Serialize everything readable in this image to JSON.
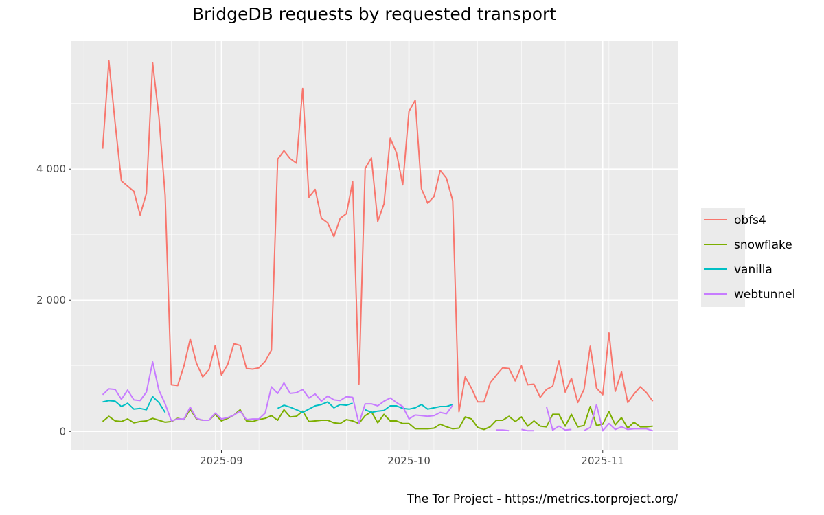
{
  "chart_data": {
    "type": "line",
    "title": "BridgeDB requests by requested transport",
    "caption": "The Tor Project - https://metrics.torproject.org/",
    "xlabel": "",
    "ylabel": "",
    "x_start": "2025-08-13",
    "x_step_days": 1,
    "xlim": [
      "2025-08-08",
      "2025-11-13"
    ],
    "ylim": [
      -280,
      5950
    ],
    "x_ticks": [
      {
        "date": "2025-09-01",
        "label": "2025-09"
      },
      {
        "date": "2025-10-01",
        "label": "2025-10"
      },
      {
        "date": "2025-11-01",
        "label": "2025-11"
      }
    ],
    "y_ticks": [
      {
        "value": 0,
        "label": "0"
      },
      {
        "value": 2000,
        "label": "2 000"
      },
      {
        "value": 4000,
        "label": "4 000"
      }
    ],
    "y_minor": [
      1000,
      3000,
      5000
    ],
    "grid": true,
    "legend_position": "right",
    "series": [
      {
        "name": "obfs4",
        "color": "#F8766D",
        "values": [
          4310,
          5650,
          4700,
          3820,
          3740,
          3660,
          3300,
          3630,
          5620,
          4800,
          3600,
          710,
          700,
          1000,
          1410,
          1040,
          830,
          940,
          1310,
          860,
          1020,
          1340,
          1310,
          960,
          950,
          970,
          1070,
          1240,
          4150,
          4280,
          4160,
          4090,
          5230,
          3570,
          3690,
          3250,
          3180,
          2970,
          3250,
          3320,
          3810,
          720,
          4010,
          4170,
          3200,
          3470,
          4470,
          4250,
          3760,
          4880,
          5050,
          3700,
          3480,
          3580,
          3980,
          3860,
          3520,
          300,
          830,
          660,
          450,
          450,
          740,
          860,
          970,
          960,
          770,
          1000,
          710,
          720,
          520,
          640,
          690,
          1080,
          600,
          810,
          440,
          640,
          1300,
          660,
          560,
          1500,
          610,
          910,
          440,
          570,
          680,
          590,
          460
        ]
      },
      {
        "name": "snowflake",
        "color": "#7CAE00",
        "values": [
          150,
          230,
          160,
          150,
          190,
          130,
          150,
          160,
          200,
          170,
          140,
          150,
          200,
          180,
          340,
          190,
          170,
          170,
          260,
          160,
          200,
          250,
          330,
          160,
          150,
          180,
          200,
          240,
          170,
          330,
          220,
          230,
          310,
          150,
          160,
          170,
          170,
          130,
          120,
          180,
          160,
          120,
          240,
          300,
          130,
          260,
          160,
          160,
          120,
          120,
          40,
          40,
          40,
          50,
          110,
          70,
          40,
          50,
          220,
          190,
          60,
          30,
          70,
          170,
          170,
          230,
          150,
          220,
          80,
          160,
          80,
          70,
          260,
          260,
          80,
          260,
          70,
          90,
          380,
          90,
          110,
          300,
          100,
          210,
          50,
          140,
          70,
          70,
          80
        ]
      },
      {
        "name": "vanilla",
        "color": "#00BFC4",
        "values": [
          450,
          470,
          460,
          380,
          430,
          340,
          350,
          330,
          530,
          440,
          290,
          null,
          null,
          null,
          null,
          null,
          null,
          null,
          null,
          null,
          null,
          null,
          null,
          null,
          null,
          null,
          null,
          null,
          350,
          400,
          370,
          330,
          290,
          340,
          390,
          410,
          450,
          360,
          410,
          400,
          430,
          null,
          330,
          290,
          310,
          320,
          390,
          390,
          350,
          340,
          360,
          410,
          340,
          360,
          380,
          380,
          410,
          null,
          null,
          null,
          null,
          null,
          null,
          null,
          null,
          null,
          null,
          null,
          null,
          null,
          null,
          null,
          null,
          null,
          null,
          null,
          null,
          null,
          null,
          null,
          null,
          null,
          null,
          null,
          null,
          null,
          null,
          null,
          null
        ]
      },
      {
        "name": "webtunnel",
        "color": "#C77CFF",
        "values": [
          560,
          650,
          640,
          490,
          630,
          480,
          470,
          600,
          1060,
          630,
          420,
          160,
          190,
          190,
          370,
          200,
          170,
          170,
          280,
          190,
          210,
          250,
          310,
          180,
          190,
          190,
          280,
          680,
          580,
          740,
          580,
          590,
          640,
          510,
          570,
          460,
          540,
          480,
          470,
          530,
          520,
          120,
          420,
          420,
          390,
          460,
          510,
          440,
          380,
          190,
          250,
          240,
          230,
          240,
          290,
          270,
          400,
          null,
          null,
          null,
          null,
          null,
          null,
          20,
          20,
          10,
          null,
          30,
          10,
          10,
          null,
          380,
          20,
          80,
          20,
          30,
          null,
          10,
          60,
          410,
          10,
          120,
          30,
          70,
          30,
          40,
          40,
          40,
          10
        ]
      }
    ]
  }
}
